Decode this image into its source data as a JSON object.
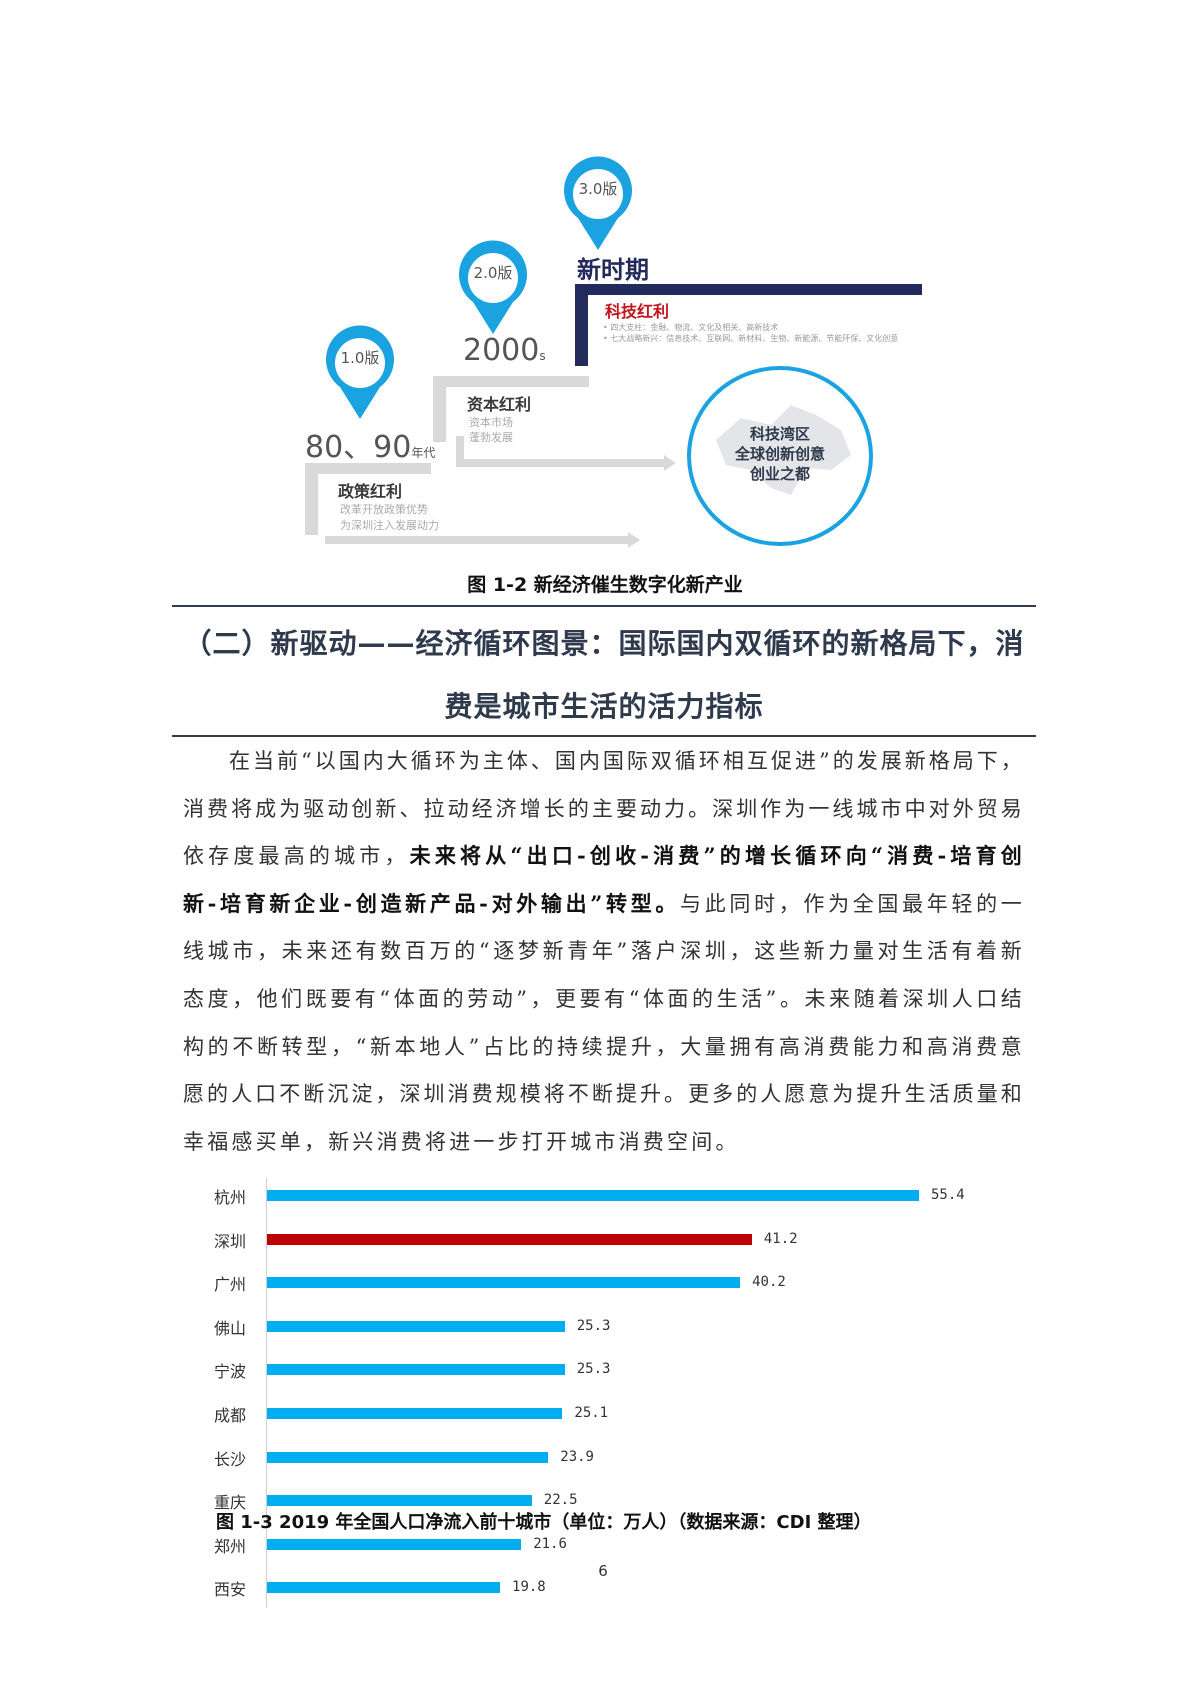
{
  "infographic": {
    "pins": [
      {
        "label": "1.0版",
        "era": "80、90",
        "era_suffix": "年代"
      },
      {
        "label": "2.0版",
        "era": "2000",
        "era_suffix": "s"
      },
      {
        "label": "3.0版",
        "era": "新时期"
      }
    ],
    "stage1": {
      "title": "政策红利",
      "lines": [
        "改革开放政策优势",
        "为深圳注入发展动力"
      ]
    },
    "stage2": {
      "title": "资本红利",
      "lines": [
        "资本市场",
        "蓬勃发展"
      ]
    },
    "stage3": {
      "title": "科技红利",
      "bullets": [
        "四大支柱：金融、物流、文化及相关、高新技术",
        "七大战略新兴：信息技术、互联网、新材料、生物、新能源、节能环保、文化创意"
      ]
    },
    "circle_lines": [
      "科技湾区",
      "全球创新创意",
      "创业之都"
    ],
    "colors": {
      "pin_blue": "#1aa3e0",
      "navy": "#232b5c",
      "red_title": "#c0161e",
      "gray": "#d9d9d9"
    }
  },
  "figure1_caption": "图 1-2 新经济催生数字化新产业",
  "section_heading": [
    "（二）新驱动——经济循环图景：国际国内双循环的新格局下，消",
    "费是城市生活的活力指标"
  ],
  "paragraph_lines": [
    [
      {
        "t": "在当前“以国内大循环为主体、国内国际双循环相互促进”的发展新格局下，"
      }
    ],
    [
      {
        "t": "消费将成为驱动创新、拉动经济增长的主要动力。深圳作为一线城市中对外贸易"
      }
    ],
    [
      {
        "t": "依存度最高的城市，"
      },
      {
        "t": "未来将从“出口-创收-消费”的增长循环向“消费-培育创",
        "b": true
      }
    ],
    [
      {
        "t": "新-培育新企业-创造新产品-对外输出”转型。",
        "b": true
      },
      {
        "t": "与此同时，作为全国最年轻的一"
      }
    ],
    [
      {
        "t": "线城市，未来还有数百万的“逐梦新青年”落户深圳，这些新力量对生活有着新"
      }
    ],
    [
      {
        "t": "态度，他们既要有“体面的劳动”，更要有“体面的生活”。未来随着深圳人口结"
      }
    ],
    [
      {
        "t": "构的不断转型，“新本地人”占比的持续提升，大量拥有高消费能力和高消费意"
      }
    ],
    [
      {
        "t": "愿的人口不断沉淀，深圳消费规模将不断提升。更多的人愿意为提升生活质量和"
      }
    ],
    [
      {
        "t": "幸福感买单，新兴消费将进一步打开城市消费空间。"
      }
    ]
  ],
  "chart_data": {
    "type": "bar",
    "orientation": "horizontal",
    "categories": [
      "杭州",
      "深圳",
      "广州",
      "佛山",
      "宁波",
      "成都",
      "长沙",
      "重庆",
      "郑州",
      "西安"
    ],
    "values": [
      55.4,
      41.2,
      40.2,
      25.3,
      25.3,
      25.1,
      23.9,
      22.5,
      21.6,
      19.8
    ],
    "data_labels": [
      "55.4",
      "41.2",
      "40.2",
      "25.3",
      "25.3",
      "25.1",
      "23.9",
      "22.5",
      "21.6",
      "19.8"
    ],
    "highlight": "深圳",
    "colors": {
      "default": "#00aeef",
      "highlight": "#c00000"
    },
    "xlim": [
      0,
      60
    ],
    "grid": false,
    "title": "",
    "xlabel": "",
    "ylabel": ""
  },
  "figure2_caption": "图 1-3 2019 年全国人口净流入前十城市（单位：万人）（数据来源：CDI 整理）",
  "page_number": "6"
}
